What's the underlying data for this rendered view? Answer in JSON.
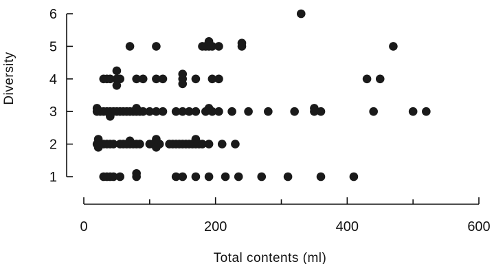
{
  "chart_data": {
    "type": "scatter",
    "title": "",
    "xlabel": "Total contents (ml)",
    "ylabel": "Diversity",
    "xlim": [
      0,
      600
    ],
    "ylim": [
      1,
      6
    ],
    "xticks": [
      0,
      200,
      400,
      600
    ],
    "yticks": [
      1,
      2,
      3,
      4,
      5,
      6
    ],
    "x_minor_ticks": [
      100,
      300,
      500
    ],
    "grid": false,
    "legend": "none",
    "marker_color": "#1a1a1a",
    "points": [
      {
        "x": 30,
        "y": 1
      },
      {
        "x": 35,
        "y": 1
      },
      {
        "x": 40,
        "y": 1
      },
      {
        "x": 45,
        "y": 1
      },
      {
        "x": 55,
        "y": 1
      },
      {
        "x": 80,
        "y": 1
      },
      {
        "x": 80,
        "y": 1.1
      },
      {
        "x": 140,
        "y": 1
      },
      {
        "x": 150,
        "y": 1
      },
      {
        "x": 170,
        "y": 1
      },
      {
        "x": 190,
        "y": 1
      },
      {
        "x": 215,
        "y": 1
      },
      {
        "x": 235,
        "y": 1
      },
      {
        "x": 270,
        "y": 1
      },
      {
        "x": 310,
        "y": 1
      },
      {
        "x": 360,
        "y": 1
      },
      {
        "x": 410,
        "y": 1
      },
      {
        "x": 20,
        "y": 2
      },
      {
        "x": 25,
        "y": 2
      },
      {
        "x": 30,
        "y": 2
      },
      {
        "x": 35,
        "y": 2
      },
      {
        "x": 40,
        "y": 2
      },
      {
        "x": 45,
        "y": 2
      },
      {
        "x": 55,
        "y": 2
      },
      {
        "x": 60,
        "y": 2
      },
      {
        "x": 65,
        "y": 2
      },
      {
        "x": 70,
        "y": 2
      },
      {
        "x": 75,
        "y": 2
      },
      {
        "x": 80,
        "y": 2
      },
      {
        "x": 85,
        "y": 2
      },
      {
        "x": 100,
        "y": 2
      },
      {
        "x": 105,
        "y": 2
      },
      {
        "x": 110,
        "y": 2
      },
      {
        "x": 115,
        "y": 2
      },
      {
        "x": 130,
        "y": 2
      },
      {
        "x": 135,
        "y": 2
      },
      {
        "x": 140,
        "y": 2
      },
      {
        "x": 145,
        "y": 2
      },
      {
        "x": 150,
        "y": 2
      },
      {
        "x": 155,
        "y": 2
      },
      {
        "x": 160,
        "y": 2
      },
      {
        "x": 165,
        "y": 2
      },
      {
        "x": 170,
        "y": 2
      },
      {
        "x": 175,
        "y": 2
      },
      {
        "x": 180,
        "y": 2
      },
      {
        "x": 190,
        "y": 2
      },
      {
        "x": 210,
        "y": 2
      },
      {
        "x": 230,
        "y": 2
      },
      {
        "x": 22,
        "y": 2.15
      },
      {
        "x": 70,
        "y": 2.1
      },
      {
        "x": 110,
        "y": 2.15
      },
      {
        "x": 170,
        "y": 2.15
      },
      {
        "x": 22,
        "y": 1.9
      },
      {
        "x": 110,
        "y": 1.9
      },
      {
        "x": 20,
        "y": 3
      },
      {
        "x": 25,
        "y": 3
      },
      {
        "x": 30,
        "y": 3
      },
      {
        "x": 35,
        "y": 3
      },
      {
        "x": 40,
        "y": 3
      },
      {
        "x": 45,
        "y": 3
      },
      {
        "x": 50,
        "y": 3
      },
      {
        "x": 55,
        "y": 3
      },
      {
        "x": 60,
        "y": 3
      },
      {
        "x": 65,
        "y": 3
      },
      {
        "x": 70,
        "y": 3
      },
      {
        "x": 75,
        "y": 3
      },
      {
        "x": 80,
        "y": 3
      },
      {
        "x": 85,
        "y": 3
      },
      {
        "x": 90,
        "y": 3
      },
      {
        "x": 100,
        "y": 3
      },
      {
        "x": 110,
        "y": 3
      },
      {
        "x": 120,
        "y": 3
      },
      {
        "x": 140,
        "y": 3
      },
      {
        "x": 150,
        "y": 3
      },
      {
        "x": 160,
        "y": 3
      },
      {
        "x": 170,
        "y": 3
      },
      {
        "x": 185,
        "y": 3
      },
      {
        "x": 195,
        "y": 3
      },
      {
        "x": 205,
        "y": 3
      },
      {
        "x": 225,
        "y": 3
      },
      {
        "x": 250,
        "y": 3
      },
      {
        "x": 280,
        "y": 3
      },
      {
        "x": 320,
        "y": 3
      },
      {
        "x": 350,
        "y": 3
      },
      {
        "x": 360,
        "y": 3
      },
      {
        "x": 440,
        "y": 3
      },
      {
        "x": 500,
        "y": 3
      },
      {
        "x": 520,
        "y": 3
      },
      {
        "x": 20,
        "y": 3.1
      },
      {
        "x": 40,
        "y": 2.85
      },
      {
        "x": 80,
        "y": 3.1
      },
      {
        "x": 350,
        "y": 3.1
      },
      {
        "x": 190,
        "y": 3.1
      },
      {
        "x": 30,
        "y": 4
      },
      {
        "x": 35,
        "y": 4
      },
      {
        "x": 40,
        "y": 4
      },
      {
        "x": 50,
        "y": 4
      },
      {
        "x": 55,
        "y": 4
      },
      {
        "x": 50,
        "y": 4.25
      },
      {
        "x": 50,
        "y": 3.8
      },
      {
        "x": 80,
        "y": 4
      },
      {
        "x": 90,
        "y": 4
      },
      {
        "x": 110,
        "y": 4
      },
      {
        "x": 120,
        "y": 4
      },
      {
        "x": 150,
        "y": 4
      },
      {
        "x": 150,
        "y": 4.15
      },
      {
        "x": 150,
        "y": 3.85
      },
      {
        "x": 170,
        "y": 4
      },
      {
        "x": 195,
        "y": 4
      },
      {
        "x": 205,
        "y": 4
      },
      {
        "x": 430,
        "y": 4
      },
      {
        "x": 450,
        "y": 4
      },
      {
        "x": 70,
        "y": 5
      },
      {
        "x": 110,
        "y": 5
      },
      {
        "x": 180,
        "y": 5
      },
      {
        "x": 185,
        "y": 5
      },
      {
        "x": 190,
        "y": 5
      },
      {
        "x": 195,
        "y": 5
      },
      {
        "x": 190,
        "y": 5.15
      },
      {
        "x": 205,
        "y": 5
      },
      {
        "x": 240,
        "y": 5
      },
      {
        "x": 240,
        "y": 5.1
      },
      {
        "x": 470,
        "y": 5
      },
      {
        "x": 330,
        "y": 6
      }
    ]
  }
}
